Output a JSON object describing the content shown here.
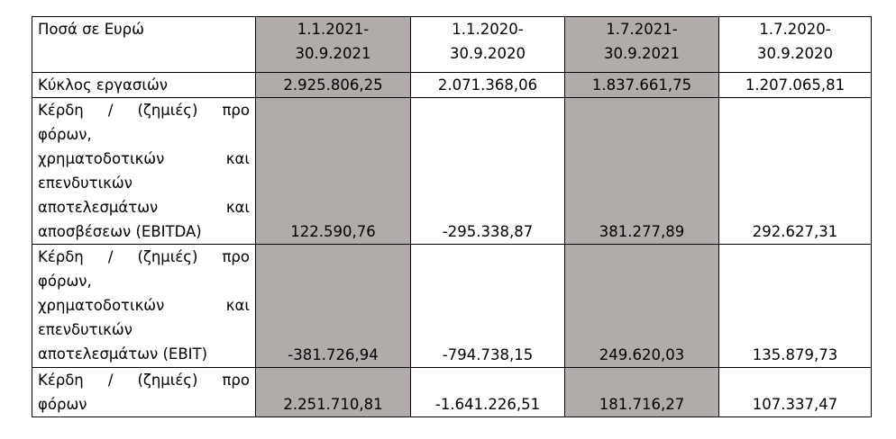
{
  "header": {
    "label": "Ποσά σε  Ευρώ",
    "periods": [
      [
        "1.1.2021-",
        "30.9.2021"
      ],
      [
        "1.1.2020-",
        "30.9.2020"
      ],
      [
        "1.7.2021-",
        "30.9.2021"
      ],
      [
        "1.7.2020-",
        "30.9.2020"
      ]
    ]
  },
  "rows": [
    {
      "label": [
        "Κύκλος εργασιών"
      ],
      "values": [
        "2.925.806,25",
        "2.071.368,06",
        "1.837.661,75",
        "1.207.065,81"
      ]
    },
    {
      "label": [
        "Κέρδη / (ζημιές) προ",
        "φόρων,",
        "χρηματοδοτικών και",
        "επενδυτικών",
        "αποτελεσμάτων και",
        "αποσβέσεων (EBITDA)"
      ],
      "values": [
        "122.590,76",
        "-295.338,87",
        "381.277,89",
        "292.627,31"
      ]
    },
    {
      "label": [
        "Κέρδη / (ζημιές) προ",
        "φόρων,",
        "χρηματοδοτικών και",
        "επενδυτικών",
        "αποτελεσμάτων (EBIT)"
      ],
      "values": [
        "-381.726,94",
        "-794.738,15",
        "249.620,03",
        "135.879,73"
      ]
    },
    {
      "label": [
        "Κέρδη / (ζημιές) προ",
        "φόρων"
      ],
      "values": [
        "2.251.710,81",
        "-1.641.226,51",
        "181.716,27",
        "107.337,47"
      ]
    }
  ]
}
